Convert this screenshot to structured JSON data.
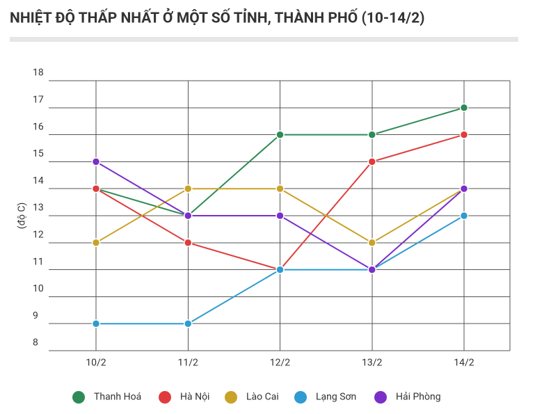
{
  "chart_data": {
    "type": "line",
    "title": "NHIỆT ĐỘ THẤP NHẤT Ở MỘT SỐ TỈNH, THÀNH PHỐ (10-14/2)",
    "y_label": "(độ C)",
    "categories": [
      "10/2",
      "11/2",
      "12/2",
      "13/2",
      "14/2"
    ],
    "series": [
      {
        "name": "Thanh Hoá",
        "color": "#2e8b57",
        "values": [
          14,
          13,
          16,
          16,
          17
        ]
      },
      {
        "name": "Hà Nội",
        "color": "#e03c3c",
        "values": [
          14,
          12,
          11,
          15,
          16
        ]
      },
      {
        "name": "Lào Cai",
        "color": "#c9a227",
        "values": [
          12,
          14,
          14,
          12,
          14
        ]
      },
      {
        "name": "Lạng Sơn",
        "color": "#2e9bd1",
        "values": [
          9,
          9,
          11,
          11,
          13
        ]
      },
      {
        "name": "Hải Phòng",
        "color": "#7b2fc9",
        "values": [
          15,
          13,
          13,
          11,
          14
        ]
      }
    ],
    "ylim": [
      8,
      18
    ],
    "yticks": [
      8,
      9,
      10,
      11,
      12,
      13,
      14,
      15,
      16,
      17,
      18
    ],
    "grid": true
  }
}
